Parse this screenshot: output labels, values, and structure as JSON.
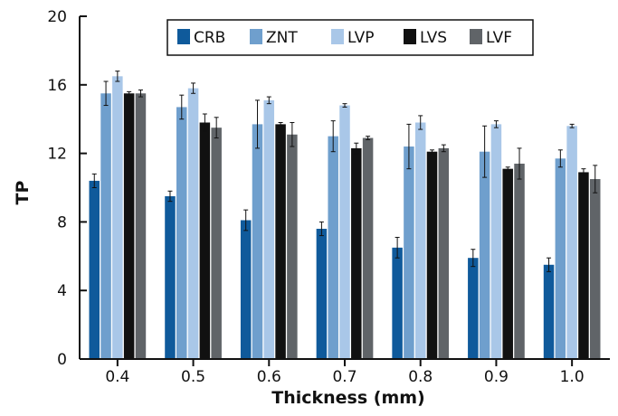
{
  "chart_data": {
    "type": "bar",
    "title": "",
    "xlabel": "Thickness (mm)",
    "ylabel": "TP",
    "ylim": [
      0,
      20
    ],
    "yticks": [
      "0",
      "4",
      "8",
      "12",
      "16",
      "20"
    ],
    "categories": [
      "0.4",
      "0.5",
      "0.6",
      "0.7",
      "0.8",
      "0.9",
      "1.0"
    ],
    "grid": false,
    "legend_position": "top",
    "series": [
      {
        "name": "CRB",
        "color": "#0f5a9b",
        "values": [
          10.4,
          9.5,
          8.1,
          7.6,
          6.5,
          5.9,
          5.5
        ],
        "errors": [
          0.4,
          0.3,
          0.6,
          0.4,
          0.6,
          0.5,
          0.4
        ]
      },
      {
        "name": "ZNT",
        "color": "#6f9fcd",
        "values": [
          15.5,
          14.7,
          13.7,
          13.0,
          12.4,
          12.1,
          11.7
        ],
        "errors": [
          0.7,
          0.7,
          1.4,
          0.9,
          1.3,
          1.5,
          0.5
        ]
      },
      {
        "name": "LVP",
        "color": "#a9c7e8",
        "values": [
          16.5,
          15.8,
          15.1,
          14.8,
          13.8,
          13.7,
          13.6
        ],
        "errors": [
          0.3,
          0.3,
          0.2,
          0.1,
          0.4,
          0.2,
          0.1
        ]
      },
      {
        "name": "LVS",
        "color": "#111111",
        "values": [
          15.5,
          13.8,
          13.7,
          12.3,
          12.1,
          11.1,
          10.9
        ],
        "errors": [
          0.1,
          0.5,
          0.1,
          0.3,
          0.1,
          0.1,
          0.2
        ]
      },
      {
        "name": "LVF",
        "color": "#606468",
        "values": [
          15.5,
          13.5,
          13.1,
          12.9,
          12.3,
          11.4,
          10.5
        ],
        "errors": [
          0.2,
          0.6,
          0.7,
          0.1,
          0.2,
          0.9,
          0.8
        ]
      }
    ]
  }
}
